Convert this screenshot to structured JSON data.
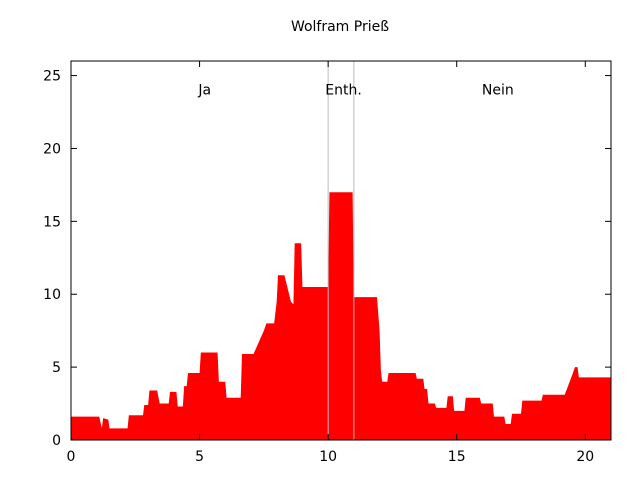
{
  "chart_data": {
    "type": "area",
    "title": "Wolfram Prieß",
    "xlabel": "",
    "ylabel": "",
    "xlim": [
      0,
      21
    ],
    "ylim": [
      0,
      26
    ],
    "xticks": [
      0,
      5,
      10,
      15,
      20
    ],
    "yticks": [
      0,
      5,
      10,
      15,
      20,
      25
    ],
    "grid": false,
    "fill_color": "#ff0000",
    "divider_color": "#bbbbbb",
    "dividers": [
      10,
      11
    ],
    "regions": [
      {
        "label": "Ja",
        "x": 5.2
      },
      {
        "label": "Enth.",
        "x": 10.6
      },
      {
        "label": "Nein",
        "x": 16.6
      }
    ],
    "series": [
      {
        "points": [
          [
            0,
            1.6
          ],
          [
            1.1,
            1.6
          ],
          [
            1.2,
            0.8
          ],
          [
            1.25,
            1.5
          ],
          [
            1.45,
            1.4
          ],
          [
            1.5,
            0.8
          ],
          [
            2.2,
            0.8
          ],
          [
            2.25,
            1.7
          ],
          [
            2.8,
            1.7
          ],
          [
            2.85,
            2.4
          ],
          [
            3.0,
            2.4
          ],
          [
            3.05,
            3.4
          ],
          [
            3.35,
            3.4
          ],
          [
            3.45,
            2.5
          ],
          [
            3.8,
            2.5
          ],
          [
            3.85,
            3.3
          ],
          [
            4.1,
            3.3
          ],
          [
            4.15,
            2.3
          ],
          [
            4.35,
            2.3
          ],
          [
            4.4,
            3.7
          ],
          [
            4.5,
            3.7
          ],
          [
            4.55,
            4.6
          ],
          [
            5.0,
            4.6
          ],
          [
            5.05,
            6.0
          ],
          [
            5.7,
            6.0
          ],
          [
            5.75,
            4.0
          ],
          [
            6.0,
            4.0
          ],
          [
            6.05,
            2.9
          ],
          [
            6.6,
            2.9
          ],
          [
            6.65,
            5.9
          ],
          [
            7.1,
            5.9
          ],
          [
            7.5,
            7.5
          ],
          [
            7.6,
            8.0
          ],
          [
            7.9,
            8.0
          ],
          [
            8.0,
            9.5
          ],
          [
            8.05,
            11.3
          ],
          [
            8.3,
            11.3
          ],
          [
            8.55,
            9.5
          ],
          [
            8.65,
            9.3
          ],
          [
            8.7,
            13.5
          ],
          [
            8.95,
            13.5
          ],
          [
            9.0,
            10.5
          ],
          [
            10.0,
            10.5
          ],
          [
            10.05,
            17.0
          ],
          [
            10.95,
            17.0
          ],
          [
            11.0,
            9.8
          ],
          [
            11.9,
            9.8
          ],
          [
            12.0,
            7.5
          ],
          [
            12.05,
            4.8
          ],
          [
            12.1,
            4.0
          ],
          [
            12.3,
            4.0
          ],
          [
            12.35,
            4.6
          ],
          [
            13.4,
            4.6
          ],
          [
            13.45,
            4.2
          ],
          [
            13.7,
            4.2
          ],
          [
            13.75,
            3.5
          ],
          [
            13.85,
            3.5
          ],
          [
            13.9,
            2.5
          ],
          [
            14.15,
            2.5
          ],
          [
            14.2,
            2.2
          ],
          [
            14.6,
            2.2
          ],
          [
            14.65,
            3.0
          ],
          [
            14.85,
            3.0
          ],
          [
            14.9,
            2.0
          ],
          [
            15.3,
            2.0
          ],
          [
            15.35,
            2.9
          ],
          [
            15.9,
            2.9
          ],
          [
            15.95,
            2.5
          ],
          [
            16.4,
            2.5
          ],
          [
            16.45,
            1.6
          ],
          [
            16.85,
            1.6
          ],
          [
            16.9,
            1.1
          ],
          [
            17.1,
            1.1
          ],
          [
            17.15,
            1.8
          ],
          [
            17.5,
            1.8
          ],
          [
            17.55,
            2.7
          ],
          [
            18.3,
            2.7
          ],
          [
            18.35,
            3.1
          ],
          [
            19.2,
            3.1
          ],
          [
            19.5,
            4.5
          ],
          [
            19.6,
            5.0
          ],
          [
            19.7,
            5.0
          ],
          [
            19.75,
            4.3
          ],
          [
            21.0,
            4.3
          ]
        ]
      }
    ]
  }
}
